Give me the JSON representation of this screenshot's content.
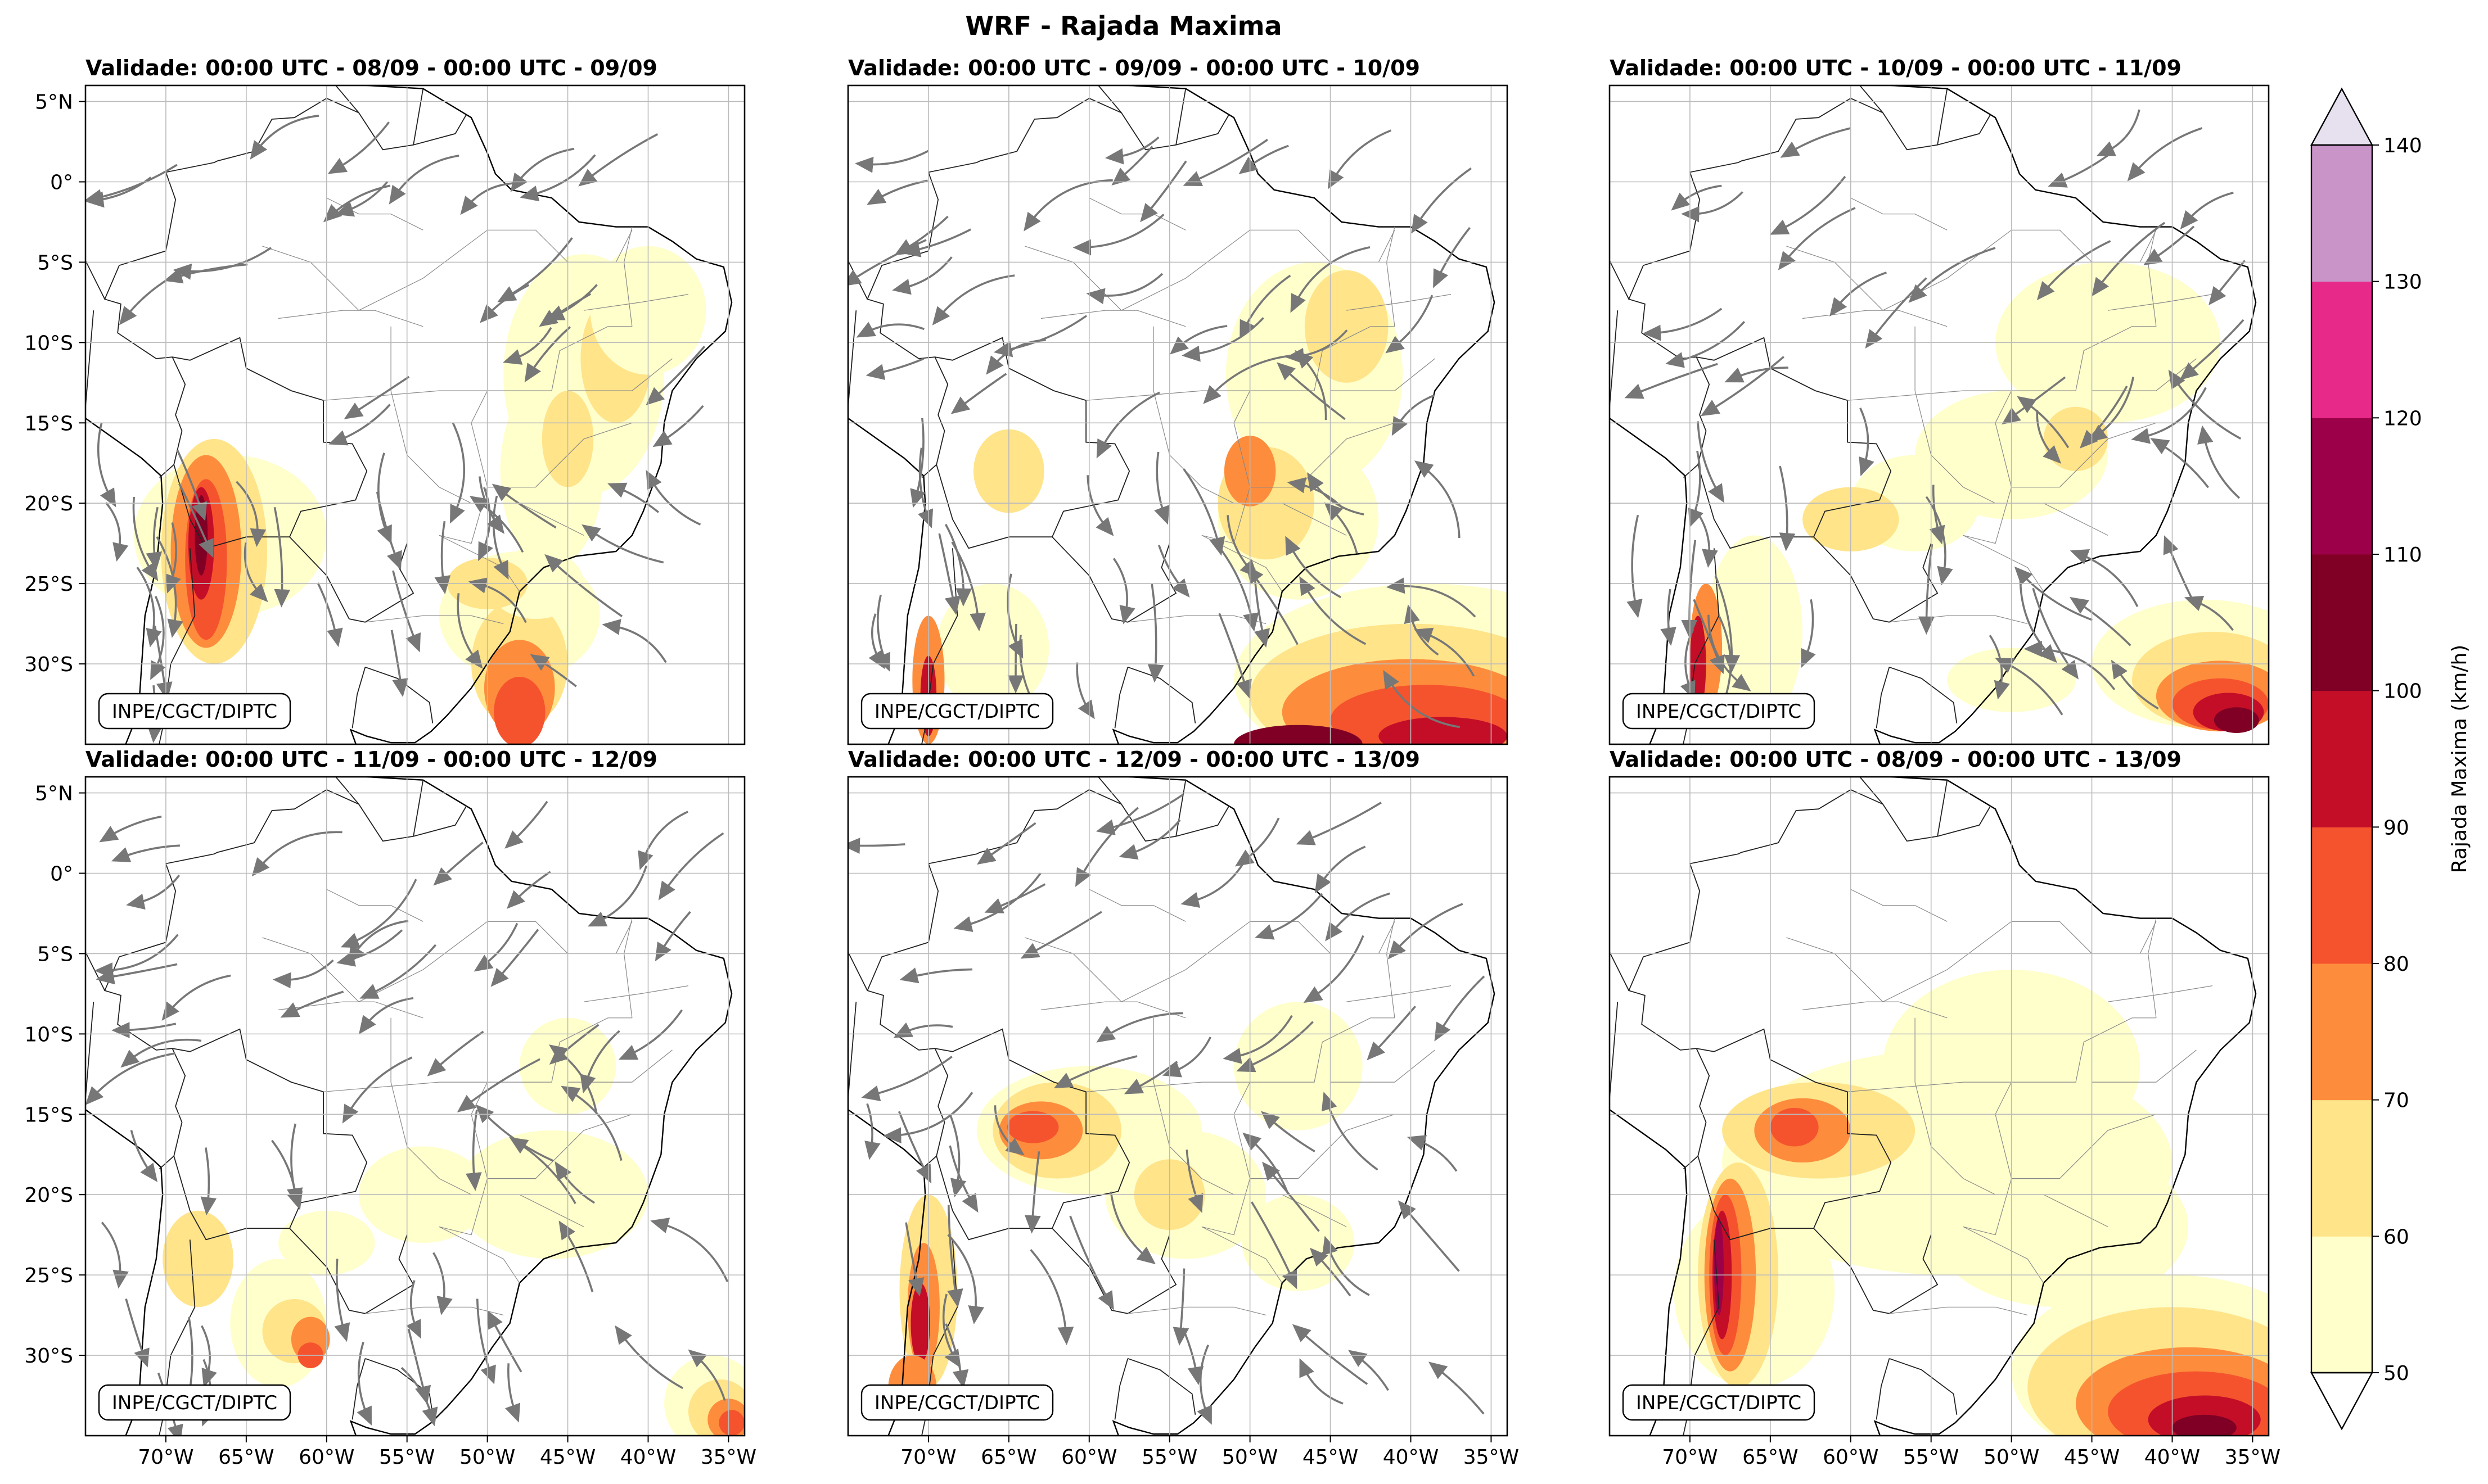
{
  "figure": {
    "title": "WRF - Rajada Maxima",
    "credit_label": "INPE/CGCT/DIPTC",
    "colorbar_label": "Rajada Maxima (km/h)"
  },
  "panels": [
    {
      "title": "Validade: 00:00 UTC - 08/09 - 00:00 UTC - 09/09",
      "streamlines": true
    },
    {
      "title": "Validade: 00:00 UTC - 09/09 - 00:00 UTC - 10/09",
      "streamlines": true
    },
    {
      "title": "Validade: 00:00 UTC - 10/09 - 00:00 UTC - 11/09",
      "streamlines": true
    },
    {
      "title": "Validade: 00:00 UTC - 11/09 - 00:00 UTC - 12/09",
      "streamlines": true
    },
    {
      "title": "Validade: 00:00 UTC - 12/09 - 00:00 UTC - 13/09",
      "streamlines": true
    },
    {
      "title": "Validade: 00:00 UTC - 08/09 - 00:00 UTC - 13/09",
      "streamlines": false
    }
  ],
  "map_extent": {
    "lon_min": -75,
    "lon_max": -34,
    "lat_min": -35,
    "lat_max": 6
  },
  "lon_ticks": [
    {
      "value": -70,
      "label": "70°W"
    },
    {
      "value": -65,
      "label": "65°W"
    },
    {
      "value": -60,
      "label": "60°W"
    },
    {
      "value": -55,
      "label": "55°W"
    },
    {
      "value": -50,
      "label": "50°W"
    },
    {
      "value": -45,
      "label": "45°W"
    },
    {
      "value": -40,
      "label": "40°W"
    },
    {
      "value": -35,
      "label": "35°W"
    }
  ],
  "lat_ticks": [
    {
      "value": 5,
      "label": "5°N"
    },
    {
      "value": 0,
      "label": "0°"
    },
    {
      "value": -5,
      "label": "5°S"
    },
    {
      "value": -10,
      "label": "10°S"
    },
    {
      "value": -15,
      "label": "15°S"
    },
    {
      "value": -20,
      "label": "20°S"
    },
    {
      "value": -25,
      "label": "25°S"
    },
    {
      "value": -30,
      "label": "30°S"
    }
  ],
  "colorbar": {
    "levels": [
      50,
      60,
      70,
      80,
      90,
      100,
      110,
      120,
      130,
      140
    ],
    "tick_labels": [
      "50",
      "60",
      "70",
      "80",
      "90",
      "100",
      "110",
      "120",
      "130",
      "140"
    ],
    "colors": [
      "#ffffcc",
      "#ffe48a",
      "#fd8d3c",
      "#f5532e",
      "#c40e28",
      "#7f0024",
      "#9c0048",
      "#e7298a",
      "#c994c7"
    ],
    "over_color": "#e7e1ef",
    "under_color": "#ffffff"
  }
}
